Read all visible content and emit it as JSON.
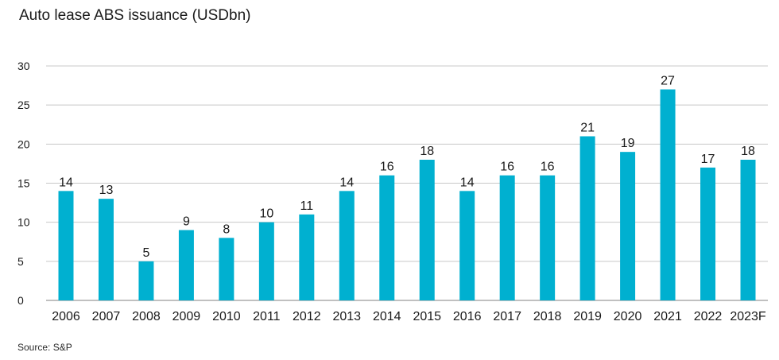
{
  "chart_data": {
    "type": "bar",
    "title": "Auto lease ABS issuance (USDbn)",
    "xlabel": "",
    "ylabel": "",
    "categories": [
      "2006",
      "2007",
      "2008",
      "2009",
      "2010",
      "2011",
      "2012",
      "2013",
      "2014",
      "2015",
      "2016",
      "2017",
      "2018",
      "2019",
      "2020",
      "2021",
      "2022",
      "2023F"
    ],
    "values": [
      14,
      13,
      5,
      9,
      8,
      10,
      11,
      14,
      16,
      18,
      14,
      16,
      16,
      21,
      19,
      27,
      17,
      18
    ],
    "ylim": [
      0,
      30
    ],
    "yticks": [
      0,
      5,
      10,
      15,
      20,
      25,
      30
    ],
    "grid": true,
    "legend": "none",
    "bar_color": "#00b0d0",
    "grid_color": "#c8c8c8",
    "axis_color": "#9a9a9a"
  },
  "footer": {
    "source": "Source: S&P"
  }
}
